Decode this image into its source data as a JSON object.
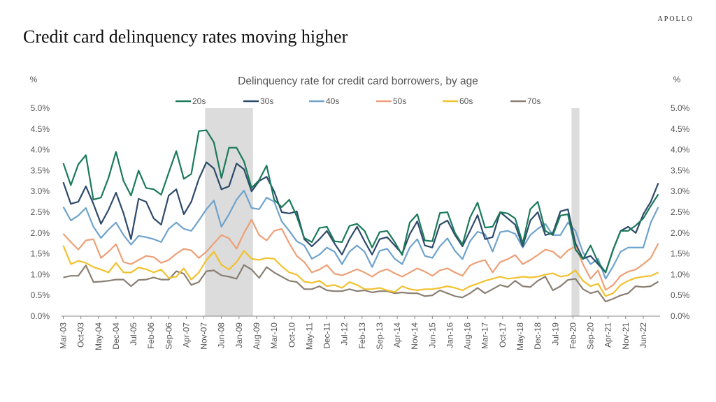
{
  "brand": "APOLLO",
  "page_title": "Credit card delinquency rates moving higher",
  "colors": {
    "20s": "#1a7a5a",
    "30s": "#2e4a6b",
    "40s": "#6fa3cc",
    "50s": "#eda077",
    "60s": "#f2c12e",
    "70s": "#8a7f73",
    "recession": "#dcdcdc"
  },
  "chart_data": {
    "type": "line",
    "title": "Delinquency rate for credit card borrowers, by age",
    "ylabel_left": "%",
    "ylabel_right": "%",
    "ylim": [
      0,
      5
    ],
    "yticks": [
      "0.0%",
      "0.5%",
      "1.0%",
      "1.5%",
      "2.0%",
      "2.5%",
      "3.0%",
      "3.5%",
      "4.0%",
      "4.5%",
      "5.0%"
    ],
    "x_start": "Mar-03",
    "x_end": "Dec-22",
    "x_count": 80,
    "x_tick_labels": [
      "Mar-03",
      "Oct-03",
      "May-04",
      "Dec-04",
      "Jul-05",
      "Feb-06",
      "Sep-06",
      "Apr-07",
      "Nov-07",
      "Jun-08",
      "Jan-09",
      "Aug-09",
      "Mar-10",
      "Oct-10",
      "May-11",
      "Dec-11",
      "Jul-12",
      "Feb-13",
      "Sep-13",
      "Apr-14",
      "Nov-14",
      "Jun-15",
      "Jan-16",
      "Aug-16",
      "Mar-17",
      "Oct-17",
      "May-18",
      "Dec-18",
      "Jul-19",
      "Feb-20",
      "Sep-20",
      "Apr-21",
      "Nov-21",
      "Jun-22"
    ],
    "shaded_periods": [
      {
        "start": "Dec-07",
        "end": "Jun-09"
      },
      {
        "start": "Feb-20",
        "end": "Apr-20"
      }
    ],
    "legend_position": "top",
    "series": [
      {
        "name": "20s",
        "values": [
          3.68,
          3.15,
          3.65,
          3.87,
          2.8,
          2.85,
          3.32,
          3.95,
          3.25,
          2.9,
          3.5,
          3.08,
          3.05,
          2.92,
          3.45,
          3.97,
          3.3,
          3.42,
          4.45,
          4.47,
          4.18,
          3.32,
          4.05,
          4.05,
          3.72,
          3.08,
          3.27,
          3.62,
          2.8,
          2.62,
          2.8,
          2.4,
          1.88,
          1.78,
          2.12,
          2.15,
          1.8,
          1.78,
          2.17,
          2.22,
          2.05,
          1.65,
          2.02,
          2.05,
          1.78,
          1.47,
          2.25,
          2.45,
          1.82,
          1.8,
          2.48,
          2.5,
          2.0,
          1.72,
          2.37,
          2.73,
          2.13,
          2.15,
          2.5,
          2.47,
          2.35,
          1.75,
          2.57,
          2.75,
          2.05,
          1.95,
          2.42,
          2.45,
          1.6,
          1.37,
          1.7,
          1.3,
          1.05,
          1.6,
          2.05,
          2.05,
          2.18,
          2.35,
          2.65,
          2.93
        ]
      },
      {
        "name": "30s",
        "values": [
          3.22,
          2.7,
          2.75,
          3.12,
          2.7,
          2.22,
          2.55,
          2.97,
          2.47,
          1.85,
          2.82,
          2.75,
          2.35,
          2.2,
          2.9,
          3.05,
          2.45,
          2.75,
          3.3,
          3.7,
          3.55,
          3.05,
          3.12,
          3.67,
          3.53,
          3.0,
          3.25,
          3.35,
          3.0,
          2.5,
          2.47,
          2.52,
          1.85,
          1.68,
          1.85,
          2.05,
          1.75,
          1.48,
          1.85,
          2.15,
          1.8,
          1.48,
          1.85,
          1.9,
          1.7,
          1.5,
          1.97,
          2.28,
          1.7,
          1.65,
          2.2,
          2.3,
          1.95,
          1.68,
          2.05,
          2.43,
          1.85,
          1.9,
          2.5,
          2.35,
          2.2,
          1.68,
          2.3,
          2.5,
          1.95,
          2.0,
          2.52,
          2.57,
          1.75,
          1.38,
          1.45,
          1.25,
          1.05,
          1.6,
          2.05,
          2.15,
          2.0,
          2.45,
          2.75,
          3.2
        ]
      },
      {
        "name": "40s",
        "values": [
          2.63,
          2.3,
          2.42,
          2.6,
          2.15,
          1.88,
          2.08,
          2.25,
          1.95,
          1.72,
          1.93,
          1.9,
          1.85,
          1.78,
          2.1,
          2.25,
          2.1,
          2.05,
          2.3,
          2.57,
          2.78,
          2.15,
          2.45,
          2.8,
          3.02,
          2.6,
          2.57,
          2.85,
          2.75,
          2.28,
          2.05,
          1.8,
          1.7,
          1.38,
          1.48,
          1.65,
          1.55,
          1.25,
          1.55,
          1.7,
          1.55,
          1.18,
          1.57,
          1.62,
          1.38,
          1.25,
          1.65,
          1.85,
          1.45,
          1.4,
          1.68,
          1.87,
          1.57,
          1.37,
          1.8,
          2.03,
          1.97,
          1.55,
          2.02,
          2.05,
          1.98,
          1.65,
          1.95,
          2.1,
          2.22,
          1.95,
          1.95,
          2.25,
          2.05,
          1.53,
          1.25,
          1.38,
          0.9,
          1.2,
          1.55,
          1.65,
          1.65,
          1.65,
          2.25,
          2.62
        ]
      },
      {
        "name": "50s",
        "values": [
          1.98,
          1.78,
          1.6,
          1.82,
          1.85,
          1.4,
          1.55,
          1.73,
          1.3,
          1.25,
          1.35,
          1.45,
          1.42,
          1.28,
          1.35,
          1.5,
          1.62,
          1.58,
          1.4,
          1.55,
          1.75,
          1.95,
          1.87,
          1.62,
          2.0,
          2.32,
          1.95,
          1.82,
          2.05,
          2.1,
          1.75,
          1.45,
          1.3,
          1.05,
          1.12,
          1.23,
          1.02,
          0.98,
          1.05,
          1.13,
          1.05,
          0.95,
          1.07,
          1.13,
          1.03,
          0.95,
          1.05,
          1.15,
          1.07,
          0.97,
          1.1,
          1.15,
          1.05,
          0.97,
          1.22,
          1.3,
          1.35,
          1.05,
          1.3,
          1.37,
          1.47,
          1.25,
          1.35,
          1.47,
          1.6,
          1.55,
          1.4,
          1.58,
          1.68,
          1.25,
          0.9,
          1.1,
          0.63,
          0.75,
          0.97,
          1.07,
          1.12,
          1.25,
          1.4,
          1.75
        ]
      },
      {
        "name": "60s",
        "values": [
          1.7,
          1.25,
          1.33,
          1.28,
          1.18,
          1.12,
          1.05,
          1.28,
          1.05,
          1.05,
          1.17,
          1.13,
          1.05,
          1.12,
          0.92,
          0.95,
          1.15,
          0.88,
          1.05,
          1.35,
          1.55,
          1.23,
          1.12,
          1.3,
          1.57,
          1.38,
          1.35,
          1.4,
          1.38,
          1.2,
          1.05,
          1.0,
          0.83,
          0.8,
          0.85,
          0.72,
          0.75,
          0.68,
          0.82,
          0.75,
          0.65,
          0.65,
          0.68,
          0.62,
          0.58,
          0.72,
          0.65,
          0.62,
          0.65,
          0.65,
          0.68,
          0.72,
          0.68,
          0.62,
          0.72,
          0.78,
          0.85,
          0.9,
          0.95,
          0.9,
          0.92,
          0.95,
          0.93,
          0.95,
          1.0,
          1.03,
          0.95,
          0.98,
          1.1,
          0.85,
          0.72,
          0.78,
          0.48,
          0.55,
          0.75,
          0.85,
          0.92,
          0.95,
          0.97,
          1.05
        ]
      },
      {
        "name": "70s",
        "values": [
          0.93,
          0.97,
          0.97,
          1.22,
          0.82,
          0.83,
          0.85,
          0.88,
          0.88,
          0.72,
          0.87,
          0.88,
          0.93,
          0.88,
          0.88,
          1.08,
          1.02,
          0.75,
          0.82,
          1.08,
          1.1,
          0.98,
          0.95,
          0.9,
          1.23,
          1.12,
          0.92,
          1.18,
          1.05,
          0.95,
          0.85,
          0.82,
          0.65,
          0.65,
          0.72,
          0.62,
          0.6,
          0.6,
          0.65,
          0.6,
          0.62,
          0.57,
          0.6,
          0.6,
          0.55,
          0.57,
          0.55,
          0.55,
          0.48,
          0.5,
          0.62,
          0.55,
          0.48,
          0.45,
          0.55,
          0.68,
          0.55,
          0.65,
          0.75,
          0.7,
          0.85,
          0.72,
          0.7,
          0.85,
          0.95,
          0.62,
          0.72,
          0.87,
          0.9,
          0.65,
          0.55,
          0.6,
          0.35,
          0.42,
          0.5,
          0.55,
          0.72,
          0.7,
          0.72,
          0.83
        ]
      }
    ]
  }
}
